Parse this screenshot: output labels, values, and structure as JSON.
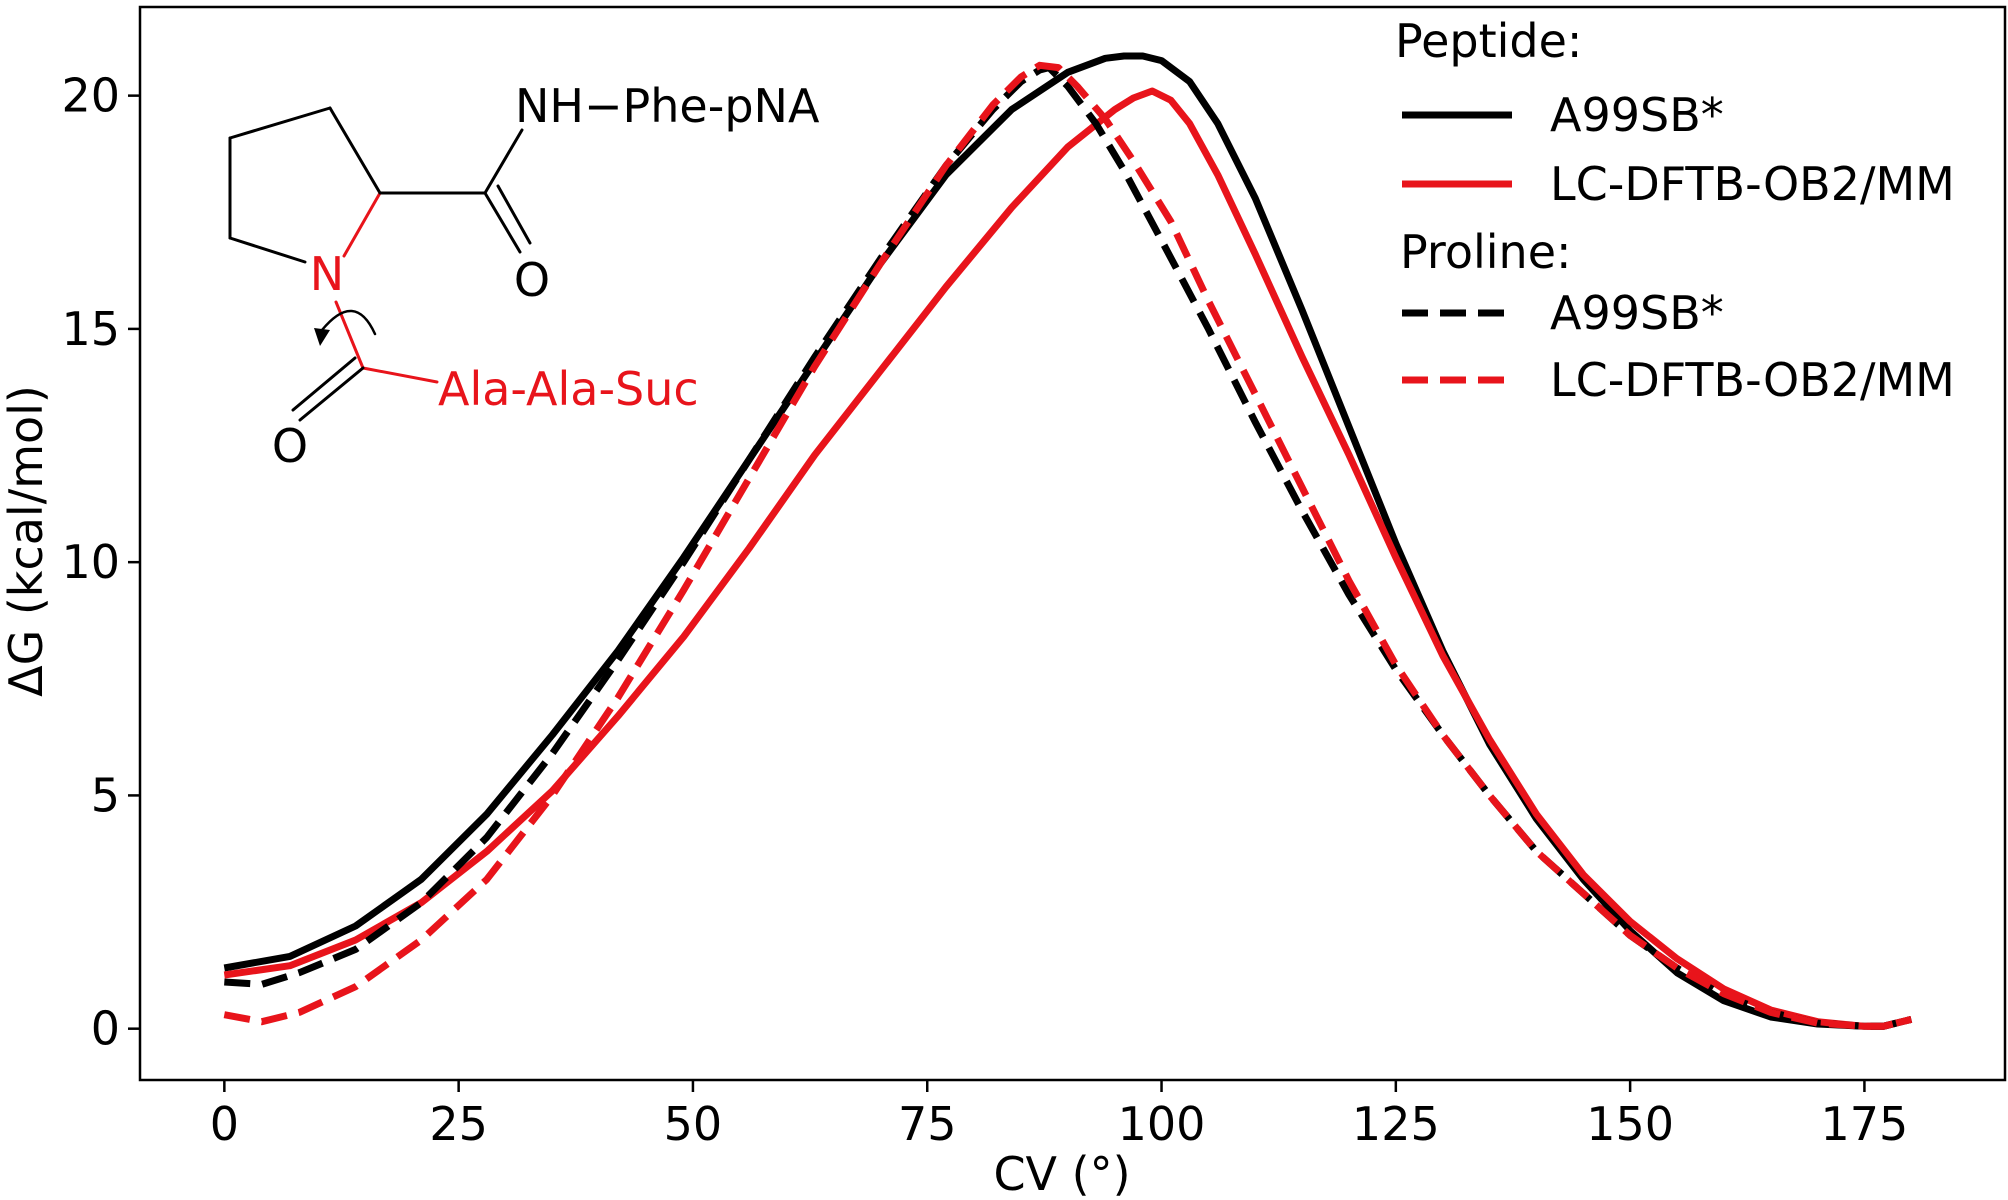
{
  "chart_data": {
    "type": "line",
    "xlabel": "CV (°)",
    "ylabel": "ΔG (kcal/mol)",
    "xlim": [
      -9,
      190
    ],
    "ylim": [
      -1.1,
      21.9
    ],
    "xticks": [
      0,
      25,
      50,
      75,
      100,
      125,
      150,
      175
    ],
    "yticks": [
      0,
      5,
      10,
      15,
      20
    ],
    "grid": false,
    "legend": {
      "placement": "top-right",
      "groups": [
        {
          "title": "Peptide:",
          "entries": [
            {
              "label": "A99SB*",
              "color": "#000000",
              "style": "solid"
            },
            {
              "label": "LC-DFTB-OB2/MM",
              "color": "#e8141b",
              "style": "solid"
            }
          ]
        },
        {
          "title": "Proline:",
          "entries": [
            {
              "label": "A99SB*",
              "color": "#000000",
              "style": "dashed"
            },
            {
              "label": "LC-DFTB-OB2/MM",
              "color": "#e8141b",
              "style": "dashed"
            }
          ]
        }
      ]
    },
    "series": [
      {
        "name": "A99SB*",
        "group": "Peptide",
        "color": "#000000",
        "style": "solid",
        "x": [
          0,
          7,
          14,
          21,
          28,
          35,
          42,
          49,
          56,
          63,
          70,
          77,
          84,
          90,
          94,
          96,
          98,
          100,
          103,
          106,
          110,
          115,
          120,
          125,
          130,
          135,
          140,
          145,
          150,
          155,
          160,
          165,
          170,
          175,
          177,
          180
        ],
        "y": [
          1.3,
          1.55,
          2.2,
          3.2,
          4.6,
          6.3,
          8.1,
          10.1,
          12.2,
          14.3,
          16.4,
          18.3,
          19.7,
          20.5,
          20.8,
          20.85,
          20.85,
          20.75,
          20.3,
          19.4,
          17.8,
          15.4,
          12.9,
          10.4,
          8.1,
          6.1,
          4.5,
          3.2,
          2.1,
          1.2,
          0.6,
          0.25,
          0.1,
          0.05,
          0.05,
          0.2
        ]
      },
      {
        "name": "LC-DFTB-OB2/MM",
        "group": "Peptide",
        "color": "#e8141b",
        "style": "solid",
        "x": [
          0,
          7,
          14,
          21,
          28,
          35,
          42,
          49,
          56,
          63,
          70,
          77,
          84,
          90,
          95,
          97,
          99,
          101,
          103,
          106,
          110,
          115,
          120,
          125,
          130,
          135,
          140,
          145,
          150,
          155,
          160,
          165,
          170,
          175,
          177,
          180
        ],
        "y": [
          1.15,
          1.35,
          1.9,
          2.7,
          3.8,
          5.1,
          6.7,
          8.4,
          10.3,
          12.3,
          14.1,
          15.9,
          17.6,
          18.9,
          19.7,
          19.95,
          20.1,
          19.9,
          19.4,
          18.3,
          16.6,
          14.4,
          12.3,
          10.1,
          8.0,
          6.2,
          4.6,
          3.3,
          2.3,
          1.5,
          0.85,
          0.4,
          0.15,
          0.05,
          0.05,
          0.2
        ]
      },
      {
        "name": "A99SB*",
        "group": "Proline",
        "color": "#000000",
        "style": "dashed",
        "x": [
          0,
          4,
          8,
          14,
          21,
          28,
          35,
          42,
          49,
          56,
          63,
          70,
          77,
          82,
          85,
          87,
          88,
          90,
          93,
          96,
          100,
          105,
          110,
          115,
          120,
          125,
          130,
          135,
          140,
          145,
          150,
          155,
          160,
          165,
          170,
          175,
          177,
          180
        ],
        "y": [
          1.0,
          0.95,
          1.2,
          1.7,
          2.7,
          4.1,
          5.9,
          7.9,
          10.0,
          12.2,
          14.4,
          16.5,
          18.5,
          19.7,
          20.3,
          20.55,
          20.6,
          20.2,
          19.4,
          18.4,
          16.9,
          15.0,
          13.0,
          11.1,
          9.3,
          7.7,
          6.3,
          5.0,
          3.8,
          2.9,
          2.0,
          1.3,
          0.7,
          0.35,
          0.12,
          0.05,
          0.05,
          0.2
        ]
      },
      {
        "name": "LC-DFTB-OB2/MM",
        "group": "Proline",
        "color": "#e8141b",
        "style": "dashed",
        "x": [
          0,
          4,
          8,
          14,
          21,
          28,
          35,
          42,
          49,
          56,
          63,
          70,
          77,
          82,
          85,
          87,
          89,
          91,
          94,
          97,
          101,
          105,
          110,
          115,
          120,
          125,
          130,
          135,
          140,
          145,
          150,
          155,
          160,
          165,
          170,
          175,
          177,
          180
        ],
        "y": [
          0.3,
          0.15,
          0.35,
          0.9,
          1.9,
          3.2,
          5.0,
          7.1,
          9.4,
          11.8,
          14.2,
          16.4,
          18.5,
          19.8,
          20.4,
          20.65,
          20.6,
          20.2,
          19.5,
          18.6,
          17.3,
          15.6,
          13.6,
          11.6,
          9.6,
          7.8,
          6.3,
          5.0,
          3.8,
          2.9,
          2.0,
          1.3,
          0.75,
          0.35,
          0.12,
          0.05,
          0.05,
          0.2
        ]
      }
    ],
    "inset_structure": {
      "labels": [
        "NH−Phe-pNA",
        "O",
        "N",
        "Ala-Ala-Suc",
        "O"
      ]
    }
  }
}
